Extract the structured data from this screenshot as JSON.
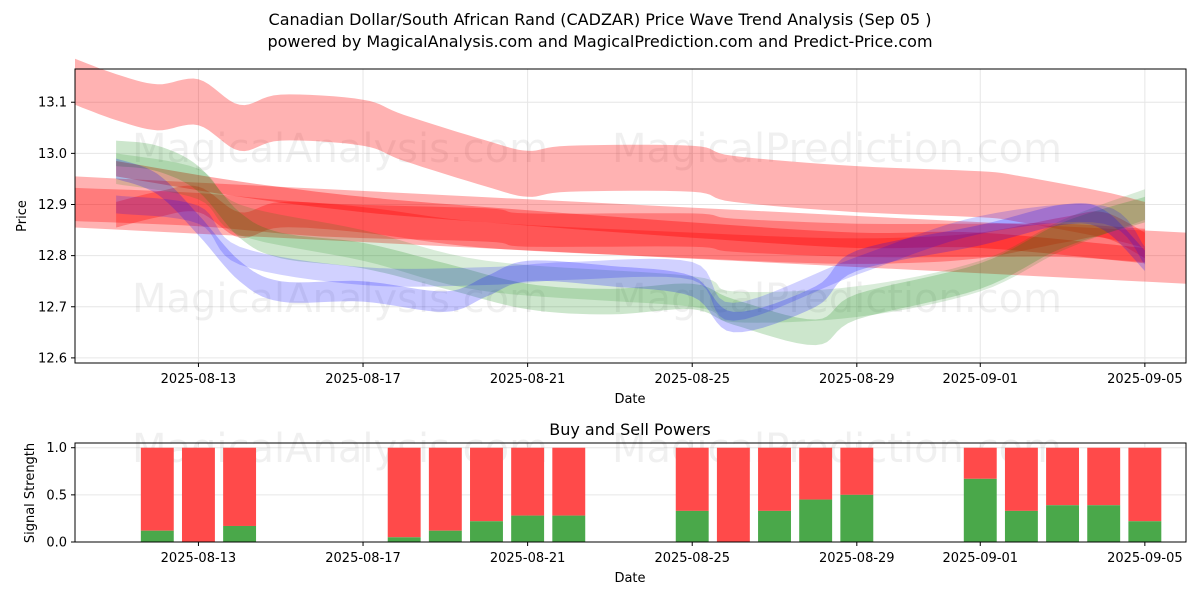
{
  "title": {
    "line1": "Canadian Dollar/South African Rand (CADZAR) Price Wave Trend Analysis (Sep 05 )",
    "line2": "powered by MagicalAnalysis.com and MagicalPrediction.com and Predict-Price.com"
  },
  "watermarks": [
    "MagicalAnalysis.com",
    "MagicalPrediction.com"
  ],
  "colors": {
    "red": "#ff0000",
    "green": "#008000",
    "blue": "#0000ff",
    "buy": "#4aa84a",
    "sell": "#ff4a4a",
    "grid": "#e6e6e6",
    "axis": "#000000"
  },
  "chart_data": [
    {
      "type": "area",
      "name": "price-wave-chart",
      "title": "",
      "xlabel": "Date",
      "ylabel": "Price",
      "grid": true,
      "xlim": [
        "2025-08-10",
        "2025-09-06"
      ],
      "ylim": [
        12.59,
        13.165
      ],
      "x_ticks": [
        "2025-08-13",
        "2025-08-17",
        "2025-08-21",
        "2025-08-25",
        "2025-08-29",
        "2025-09-01",
        "2025-09-05"
      ],
      "y_ticks": [
        12.6,
        12.7,
        12.8,
        12.9,
        13.0,
        13.1
      ],
      "series": [
        {
          "name": "red-wave-1",
          "color": "red",
          "alpha": 0.3,
          "width": 0.09,
          "x": [
            "2025-08-10",
            "2025-08-11",
            "2025-08-12",
            "2025-08-13",
            "2025-08-14",
            "2025-08-15",
            "2025-08-17",
            "2025-08-18",
            "2025-08-20",
            "2025-08-21",
            "2025-08-22",
            "2025-08-25",
            "2025-08-26",
            "2025-08-29",
            "2025-09-01",
            "2025-09-02",
            "2025-09-04",
            "2025-09-05"
          ],
          "y": [
            13.14,
            13.11,
            13.09,
            13.1,
            13.05,
            13.07,
            13.06,
            13.03,
            12.98,
            12.96,
            12.97,
            12.97,
            12.95,
            12.93,
            12.92,
            12.91,
            12.88,
            12.86
          ]
        },
        {
          "name": "red-wave-2",
          "color": "red",
          "alpha": 0.3,
          "width": 0.1,
          "x": [
            "2025-08-10",
            "2025-09-06"
          ],
          "y": [
            12.905,
            12.795
          ]
        },
        {
          "name": "red-wave-3",
          "color": "red",
          "alpha": 0.3,
          "width": 0.065,
          "x": [
            "2025-08-10",
            "2025-08-13",
            "2025-08-16",
            "2025-08-20",
            "2025-08-21",
            "2025-08-25",
            "2025-08-26",
            "2025-08-29",
            "2025-09-01",
            "2025-09-03",
            "2025-09-05"
          ],
          "y": [
            12.9,
            12.89,
            12.87,
            12.86,
            12.85,
            12.85,
            12.84,
            12.83,
            12.83,
            12.83,
            12.82
          ]
        },
        {
          "name": "red-wave-4",
          "color": "red",
          "alpha": 0.35,
          "width": 0.03,
          "x": [
            "2025-08-11",
            "2025-08-14",
            "2025-08-17",
            "2025-08-20",
            "2025-08-25",
            "2025-08-29",
            "2025-09-01",
            "2025-09-05"
          ],
          "y": [
            12.97,
            12.93,
            12.9,
            12.88,
            12.85,
            12.83,
            12.83,
            12.8
          ]
        },
        {
          "name": "red-wave-5",
          "color": "red",
          "alpha": 0.3,
          "width": 0.05,
          "x": [
            "2025-08-11",
            "2025-08-12",
            "2025-08-13",
            "2025-08-14",
            "2025-08-15",
            "2025-08-17",
            "2025-08-20",
            "2025-08-25",
            "2025-08-28",
            "2025-08-30",
            "2025-09-01",
            "2025-09-03",
            "2025-09-04",
            "2025-09-05"
          ],
          "y": [
            12.88,
            12.9,
            12.91,
            12.86,
            12.88,
            12.87,
            12.84,
            12.82,
            12.81,
            12.81,
            12.82,
            12.85,
            12.86,
            12.82
          ]
        },
        {
          "name": "green-wave-1",
          "color": "green",
          "alpha": 0.2,
          "width": 0.05,
          "x": [
            "2025-08-11",
            "2025-08-12",
            "2025-08-13",
            "2025-08-14",
            "2025-08-15",
            "2025-08-17",
            "2025-08-19",
            "2025-08-21",
            "2025-08-23",
            "2025-08-25",
            "2025-08-26",
            "2025-08-28",
            "2025-08-29",
            "2025-09-01",
            "2025-09-03",
            "2025-09-05"
          ],
          "y": [
            13.0,
            12.99,
            12.95,
            12.86,
            12.82,
            12.8,
            12.76,
            12.72,
            12.71,
            12.72,
            12.69,
            12.65,
            12.7,
            12.76,
            12.84,
            12.89
          ]
        },
        {
          "name": "green-wave-2",
          "color": "green",
          "alpha": 0.15,
          "width": 0.06,
          "x": [
            "2025-08-11",
            "2025-08-13",
            "2025-08-14",
            "2025-08-17",
            "2025-08-20",
            "2025-08-25",
            "2025-08-26",
            "2025-08-29",
            "2025-09-01",
            "2025-09-03",
            "2025-09-05"
          ],
          "y": [
            12.97,
            12.94,
            12.87,
            12.82,
            12.76,
            12.73,
            12.7,
            12.71,
            12.76,
            12.84,
            12.9
          ]
        },
        {
          "name": "blue-wave-1",
          "color": "blue",
          "alpha": 0.22,
          "width": 0.04,
          "x": [
            "2025-08-11",
            "2025-08-12",
            "2025-08-13",
            "2025-08-14",
            "2025-08-15",
            "2025-08-17",
            "2025-08-19",
            "2025-08-20",
            "2025-08-21",
            "2025-08-23",
            "2025-08-25",
            "2025-08-26",
            "2025-08-28",
            "2025-08-29",
            "2025-09-01",
            "2025-09-03",
            "2025-09-04",
            "2025-09-05"
          ],
          "y": [
            12.97,
            12.94,
            12.86,
            12.77,
            12.73,
            12.73,
            12.71,
            12.74,
            12.77,
            12.76,
            12.74,
            12.67,
            12.72,
            12.79,
            12.84,
            12.88,
            12.87,
            12.79
          ]
        },
        {
          "name": "blue-wave-2",
          "color": "blue",
          "alpha": 0.18,
          "width": 0.035,
          "x": [
            "2025-08-11",
            "2025-08-13",
            "2025-08-14",
            "2025-08-17",
            "2025-08-20",
            "2025-08-22",
            "2025-08-25",
            "2025-08-26",
            "2025-08-29",
            "2025-09-01",
            "2025-09-04",
            "2025-09-05"
          ],
          "y": [
            12.9,
            12.88,
            12.8,
            12.76,
            12.76,
            12.77,
            12.77,
            12.69,
            12.78,
            12.86,
            12.88,
            12.8
          ]
        }
      ]
    },
    {
      "type": "bar",
      "name": "buy-sell-powers-chart",
      "title": "Buy and Sell Powers",
      "xlabel": "Date",
      "ylabel": "Signal Strength",
      "grid": true,
      "xlim": [
        "2025-08-10",
        "2025-09-06"
      ],
      "ylim": [
        0,
        1.05
      ],
      "x_ticks": [
        "2025-08-13",
        "2025-08-17",
        "2025-08-21",
        "2025-08-25",
        "2025-08-29",
        "2025-09-01",
        "2025-09-05"
      ],
      "y_ticks": [
        0.0,
        0.5,
        1.0
      ],
      "y_tick_labels": [
        "0.0",
        "0.5",
        "1.0"
      ],
      "series": [
        {
          "name": "Buy",
          "color": "buy"
        },
        {
          "name": "Sell",
          "color": "sell"
        }
      ],
      "categories": [
        "2025-08-12",
        "2025-08-13",
        "2025-08-14",
        "2025-08-18",
        "2025-08-19",
        "2025-08-20",
        "2025-08-21",
        "2025-08-22",
        "2025-08-25",
        "2025-08-26",
        "2025-08-27",
        "2025-08-28",
        "2025-08-29",
        "2025-09-01",
        "2025-09-02",
        "2025-09-03",
        "2025-09-04",
        "2025-09-05"
      ],
      "buy_values": [
        0.12,
        0.0,
        0.17,
        0.05,
        0.12,
        0.22,
        0.28,
        0.28,
        0.33,
        0.0,
        0.33,
        0.45,
        0.5,
        0.67,
        0.33,
        0.39,
        0.39,
        0.22
      ],
      "sell_values": [
        0.88,
        1.0,
        0.83,
        0.95,
        0.88,
        0.78,
        0.72,
        0.72,
        0.67,
        1.0,
        0.67,
        0.55,
        0.5,
        0.33,
        0.67,
        0.61,
        0.61,
        0.78
      ]
    }
  ]
}
